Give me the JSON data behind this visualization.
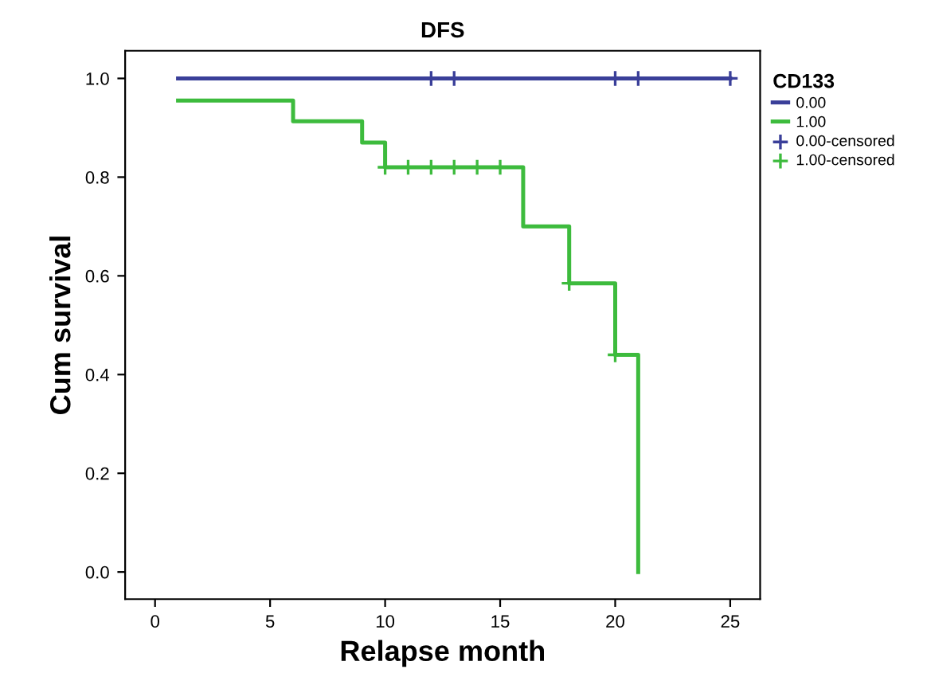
{
  "chart_data": {
    "type": "step",
    "title": "DFS",
    "xlabel": "Relapse month",
    "ylabel": "Cum survival",
    "legend_title": "CD133",
    "legend": "right",
    "grid": false,
    "xlim": [
      -1.3,
      26.3
    ],
    "ylim": [
      -0.055,
      1.056
    ],
    "xticks": [
      0,
      5,
      10,
      15,
      20,
      25
    ],
    "yticks": [
      {
        "value": 0,
        "label": "0.0"
      },
      {
        "value": 0.2,
        "label": "0.2"
      },
      {
        "value": 0.4,
        "label": "0.4"
      },
      {
        "value": 0.6,
        "label": "0.6"
      },
      {
        "value": 0.8,
        "label": "0.8"
      },
      {
        "value": 1.0,
        "label": "1.0"
      }
    ],
    "series": [
      {
        "name": "0.00",
        "color": "#3a3f99",
        "x": [
          1,
          25
        ],
        "values": [
          1.0,
          1.0
        ]
      },
      {
        "name": "1.00",
        "color": "#3dbb3d",
        "x": [
          1,
          6,
          9,
          10,
          16,
          18,
          20,
          21
        ],
        "values": [
          0.955,
          0.913,
          0.87,
          0.82,
          0.7,
          0.585,
          0.44,
          0.0
        ]
      },
      {
        "name": "0.00-censored",
        "type": "scatter",
        "marker": "cross",
        "color": "#3a3f99",
        "x": [
          12,
          13,
          20,
          21,
          25
        ],
        "values": [
          1.0,
          1.0,
          1.0,
          1.0,
          1.0
        ]
      },
      {
        "name": "1.00-censored",
        "type": "scatter",
        "marker": "cross",
        "color": "#3dbb3d",
        "x": [
          10,
          11,
          12,
          13,
          14,
          15,
          18,
          20
        ],
        "values": [
          0.82,
          0.82,
          0.82,
          0.82,
          0.82,
          0.82,
          0.585,
          0.44
        ]
      }
    ]
  }
}
